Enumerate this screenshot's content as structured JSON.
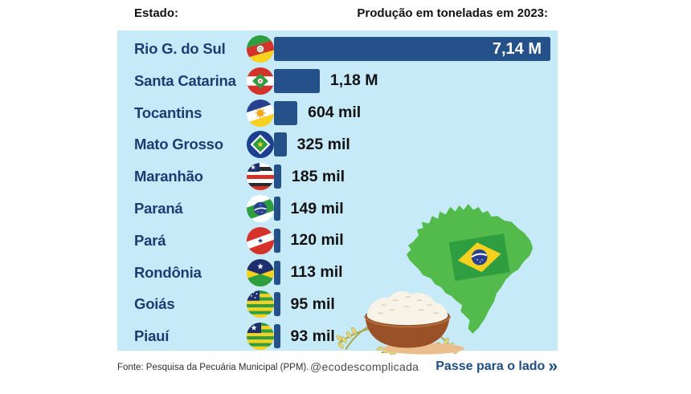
{
  "header": {
    "left_label": "Estado:",
    "right_label": "Produção em toneladas em 2023:"
  },
  "chart_data": {
    "type": "bar",
    "orientation": "horizontal",
    "title": "Produção em toneladas em 2023",
    "unit": "toneladas",
    "year": "2023",
    "categories": [
      "Rio G. do Sul",
      "Santa Catarina",
      "Tocantins",
      "Mato Grosso",
      "Maranhão",
      "Paraná",
      "Pará",
      "Rondônia",
      "Goiás",
      "Piauí"
    ],
    "values": [
      7140000,
      1180000,
      604000,
      325000,
      185000,
      149000,
      120000,
      113000,
      95000,
      93000
    ],
    "value_labels": [
      "7,14 M",
      "1,18 M",
      "604 mil",
      "325 mil",
      "185 mil",
      "149 mil",
      "120 mil",
      "113 mil",
      "95 mil",
      "93 mil"
    ],
    "flag_icons": [
      "rio-grande-do-sul-flag-icon",
      "santa-catarina-flag-icon",
      "tocantins-flag-icon",
      "mato-grosso-flag-icon",
      "maranhao-flag-icon",
      "parana-flag-icon",
      "para-flag-icon",
      "rondonia-flag-icon",
      "goias-flag-icon",
      "piaui-flag-icon"
    ],
    "bar_color": "#25518b",
    "category_label_color": "#1e3c72",
    "panel_background": "#c7eaf8",
    "legend": "none",
    "grid": "off"
  },
  "illustrations": {
    "brazil_map": "brazil-map-with-flag",
    "rice_bowl": "rice-bowl-with-stalks"
  },
  "footer": {
    "source": "Fonte: Pesquisa da Pecuária Municipal (PPM).",
    "handle": "@ecodescomplicada",
    "cta": "Passe para o lado",
    "cta_arrows": "»"
  }
}
